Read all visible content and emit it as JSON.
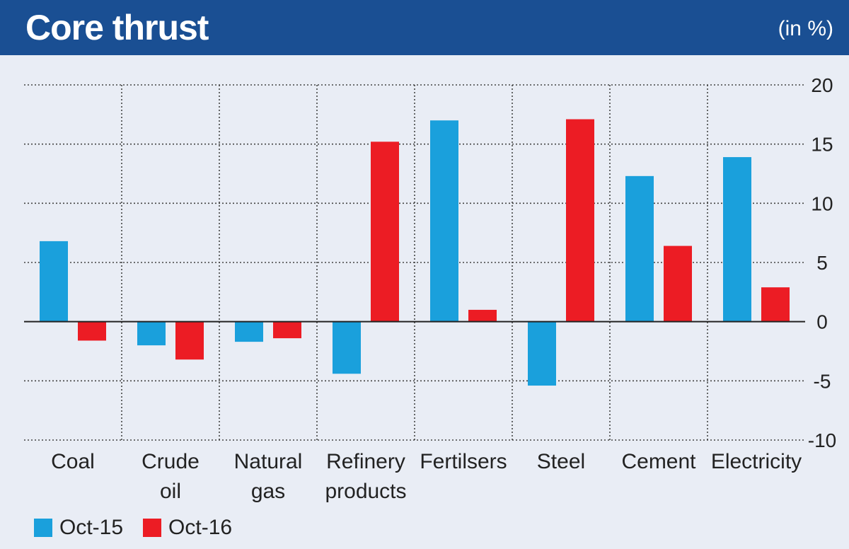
{
  "header": {
    "title": "Core thrust",
    "unit": "(in %)"
  },
  "colors": {
    "header_bg": "#1a4f93",
    "oct15": "#1aa0dc",
    "oct16": "#ec1c24"
  },
  "legend": [
    {
      "label": "Oct-15"
    },
    {
      "label": "Oct-16"
    }
  ],
  "chart_data": {
    "type": "bar",
    "title": "Core thrust",
    "ylabel": "",
    "xlabel": "",
    "ylim": [
      -10,
      20
    ],
    "yticks": [
      "20",
      "15",
      "10",
      "5",
      "0",
      "-5",
      "-10"
    ],
    "ytick_values": [
      20,
      15,
      10,
      5,
      0,
      -5,
      -10
    ],
    "grid": true,
    "legend_position": "bottom-left",
    "categories": [
      [
        "Coal"
      ],
      [
        "Crude",
        "oil"
      ],
      [
        "Natural",
        "gas"
      ],
      [
        "Refinery",
        "products"
      ],
      [
        "Fertilsers"
      ],
      [
        "Steel"
      ],
      [
        "Cement"
      ],
      [
        "Electricity"
      ]
    ],
    "series": [
      {
        "name": "Oct-15",
        "values": [
          6.8,
          -2.0,
          -1.7,
          -4.4,
          17.0,
          -5.4,
          12.3,
          13.9
        ]
      },
      {
        "name": "Oct-16",
        "values": [
          -1.6,
          -3.2,
          -1.4,
          15.2,
          1.0,
          17.1,
          6.4,
          2.9
        ]
      }
    ]
  }
}
